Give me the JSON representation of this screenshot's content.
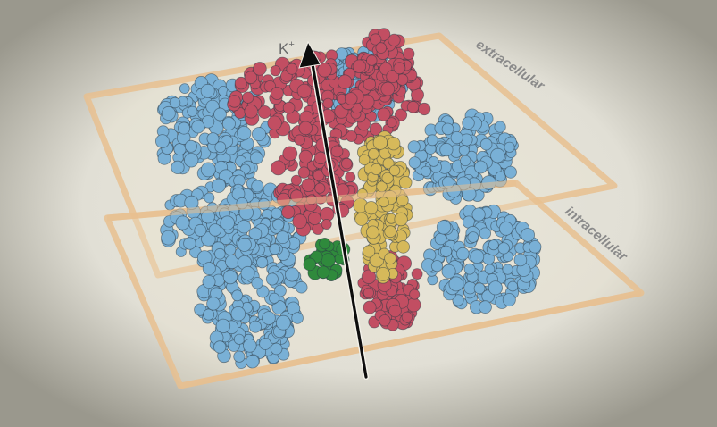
{
  "labels": {
    "ion": "K",
    "ion_charge": "+",
    "upper_membrane": "extracellular",
    "lower_membrane": "intracellular"
  },
  "colors": {
    "background": "#e4e2d8",
    "vignette": "#8d8b80",
    "plane_frame": "#e7c08f",
    "blue_subunit": "#79b0d6",
    "red_subunit": "#c24e62",
    "yellow_subunit": "#d6b95a",
    "green_subunit": "#2f8a3c",
    "arrow": "#0d0d0d",
    "label_text": "#8a8a8a"
  },
  "icons": {
    "ion_path": "arrow-up-icon"
  }
}
